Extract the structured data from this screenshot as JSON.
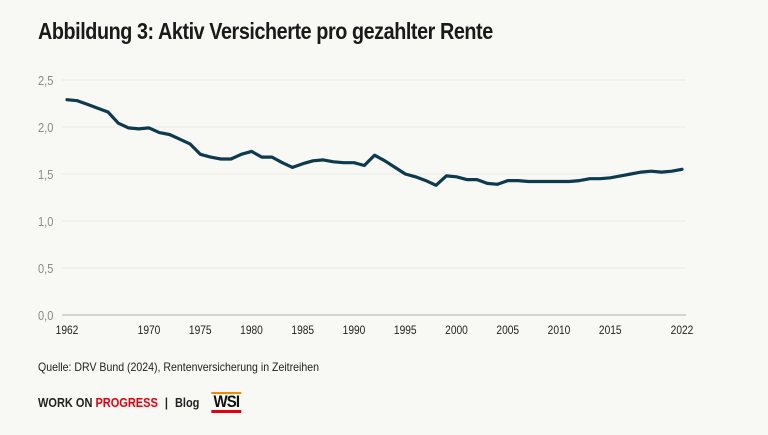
{
  "title": "Abbildung 3: Aktiv Versicherte pro gezahlter Rente",
  "source": "Quelle: DRV Bund (2024), Rentenversicherung in Zeitreihen",
  "footer": {
    "brand_a": "WORK ON ",
    "brand_b": "PROGRESS",
    "separator": "|",
    "blog": "Blog",
    "logo": "WSI"
  },
  "colors": {
    "line": "#0d3a4f",
    "background": "#f8f8f4",
    "accent": "#e3000f"
  },
  "chart_data": {
    "type": "line",
    "title": "Abbildung 3: Aktiv Versicherte pro gezahlter Rente",
    "xlabel": "",
    "ylabel": "",
    "xlim": [
      1962,
      2022
    ],
    "ylim": [
      0,
      2.5
    ],
    "grid": true,
    "x_ticks": [
      "1962",
      "1970",
      "1975",
      "1980",
      "1985",
      "1990",
      "1995",
      "2000",
      "2005",
      "2010",
      "2015",
      "2022"
    ],
    "y_ticks": [
      "0,0",
      "0,5",
      "1,0",
      "1,5",
      "2,0",
      "2,5"
    ],
    "x": [
      1962,
      1963,
      1964,
      1965,
      1966,
      1967,
      1968,
      1969,
      1970,
      1971,
      1972,
      1973,
      1974,
      1975,
      1976,
      1977,
      1978,
      1979,
      1980,
      1981,
      1982,
      1983,
      1984,
      1985,
      1986,
      1987,
      1988,
      1989,
      1990,
      1991,
      1992,
      1993,
      1994,
      1995,
      1996,
      1997,
      1998,
      1999,
      2000,
      2001,
      2002,
      2003,
      2004,
      2005,
      2006,
      2007,
      2008,
      2009,
      2010,
      2011,
      2012,
      2013,
      2014,
      2015,
      2016,
      2017,
      2018,
      2019,
      2020,
      2021,
      2022
    ],
    "values": [
      2.29,
      2.28,
      2.24,
      2.2,
      2.16,
      2.04,
      1.99,
      1.98,
      1.99,
      1.94,
      1.92,
      1.87,
      1.82,
      1.71,
      1.68,
      1.66,
      1.66,
      1.71,
      1.74,
      1.68,
      1.68,
      1.62,
      1.57,
      1.61,
      1.64,
      1.65,
      1.63,
      1.62,
      1.62,
      1.59,
      1.7,
      1.64,
      1.57,
      1.5,
      1.47,
      1.43,
      1.38,
      1.48,
      1.47,
      1.44,
      1.44,
      1.4,
      1.39,
      1.43,
      1.43,
      1.42,
      1.42,
      1.42,
      1.42,
      1.42,
      1.43,
      1.45,
      1.45,
      1.46,
      1.48,
      1.5,
      1.52,
      1.53,
      1.52,
      1.53,
      1.55
    ]
  }
}
